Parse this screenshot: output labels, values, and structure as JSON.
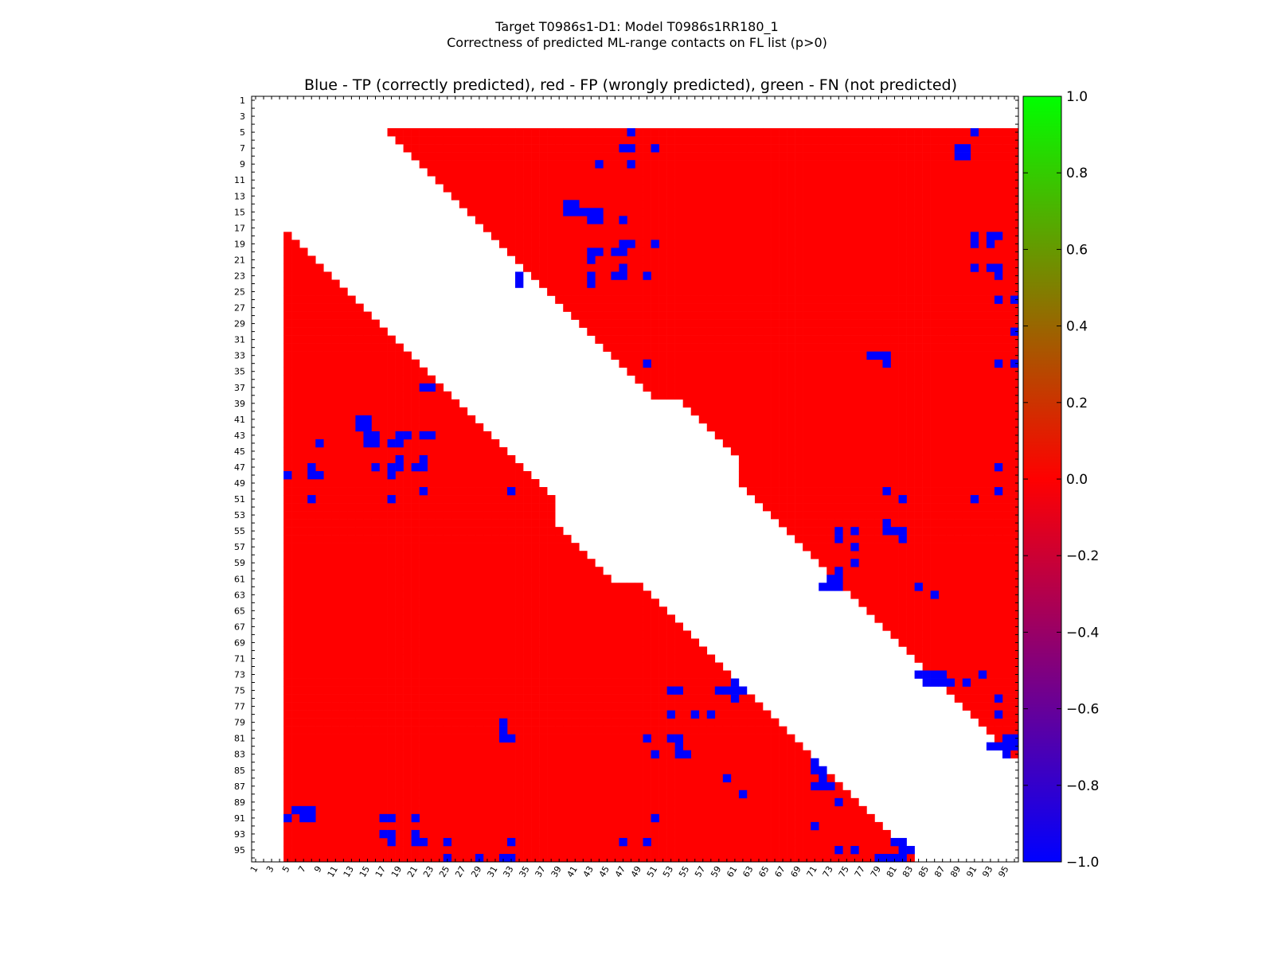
{
  "figure": {
    "title_line1": "Target T0986s1-D1: Model T0986s1RR180_1",
    "title_line2": "Correctness of predicted ML-range contacts on FL list (p>0)"
  },
  "chart_data": {
    "type": "heatmap",
    "title": "Blue - TP (correctly predicted), red - FP (wrongly predicted), green - FN (not predicted)",
    "n": 96,
    "x_ticks": [
      1,
      3,
      5,
      7,
      9,
      11,
      13,
      15,
      17,
      19,
      21,
      23,
      25,
      27,
      29,
      31,
      33,
      35,
      37,
      39,
      41,
      43,
      45,
      47,
      49,
      51,
      53,
      55,
      57,
      59,
      61,
      63,
      65,
      67,
      69,
      71,
      73,
      75,
      77,
      79,
      81,
      83,
      85,
      87,
      89,
      91,
      93,
      95
    ],
    "y_ticks": [
      1,
      3,
      5,
      7,
      9,
      11,
      13,
      15,
      17,
      19,
      21,
      23,
      25,
      27,
      29,
      31,
      33,
      35,
      37,
      39,
      41,
      43,
      45,
      47,
      49,
      51,
      53,
      55,
      57,
      59,
      61,
      63,
      65,
      67,
      69,
      71,
      73,
      75,
      77,
      79,
      81,
      83,
      85,
      87,
      89,
      91,
      93,
      95
    ],
    "colorbar": {
      "min": -1.0,
      "max": 1.0,
      "ticks": [
        "1.0",
        "0.8",
        "0.6",
        "0.4",
        "0.2",
        "0.0",
        "−0.2",
        "−0.4",
        "−0.6",
        "−0.8",
        "−1.0"
      ],
      "colors": [
        "#0000ff",
        "#ff0000",
        "#00ff00"
      ]
    },
    "colors": {
      "TP": "#0000ff",
      "FP": "#ff0000",
      "FN": "#00ff00"
    },
    "tp_cells": [
      [
        5,
        48
      ],
      [
        5,
        91
      ],
      [
        7,
        47
      ],
      [
        7,
        48
      ],
      [
        7,
        51
      ],
      [
        7,
        89
      ],
      [
        7,
        90
      ],
      [
        8,
        89
      ],
      [
        8,
        90
      ],
      [
        9,
        44
      ],
      [
        9,
        48
      ],
      [
        14,
        40
      ],
      [
        14,
        41
      ],
      [
        15,
        40
      ],
      [
        15,
        41
      ],
      [
        15,
        42
      ],
      [
        15,
        43
      ],
      [
        15,
        44
      ],
      [
        16,
        43
      ],
      [
        16,
        44
      ],
      [
        16,
        47
      ],
      [
        18,
        91
      ],
      [
        18,
        93
      ],
      [
        18,
        94
      ],
      [
        19,
        47
      ],
      [
        19,
        48
      ],
      [
        19,
        51
      ],
      [
        19,
        91
      ],
      [
        19,
        93
      ],
      [
        20,
        43
      ],
      [
        20,
        44
      ],
      [
        20,
        46
      ],
      [
        20,
        47
      ],
      [
        21,
        43
      ],
      [
        22,
        47
      ],
      [
        22,
        91
      ],
      [
        22,
        93
      ],
      [
        22,
        94
      ],
      [
        23,
        34
      ],
      [
        23,
        43
      ],
      [
        23,
        46
      ],
      [
        23,
        47
      ],
      [
        23,
        50
      ],
      [
        23,
        94
      ],
      [
        24,
        34
      ],
      [
        24,
        43
      ],
      [
        26,
        94
      ],
      [
        26,
        96
      ],
      [
        30,
        96
      ],
      [
        33,
        78
      ],
      [
        33,
        79
      ],
      [
        33,
        80
      ],
      [
        34,
        50
      ],
      [
        34,
        80
      ],
      [
        34,
        94
      ],
      [
        34,
        96
      ],
      [
        37,
        22
      ],
      [
        37,
        23
      ],
      [
        41,
        14
      ],
      [
        41,
        15
      ],
      [
        42,
        14
      ],
      [
        42,
        15
      ],
      [
        43,
        15
      ],
      [
        43,
        16
      ],
      [
        43,
        19
      ],
      [
        43,
        20
      ],
      [
        43,
        22
      ],
      [
        43,
        23
      ],
      [
        44,
        9
      ],
      [
        44,
        15
      ],
      [
        44,
        16
      ],
      [
        44,
        18
      ],
      [
        44,
        19
      ],
      [
        46,
        19
      ],
      [
        46,
        22
      ],
      [
        47,
        8
      ],
      [
        47,
        16
      ],
      [
        47,
        18
      ],
      [
        47,
        19
      ],
      [
        47,
        21
      ],
      [
        47,
        22
      ],
      [
        47,
        94
      ],
      [
        48,
        5
      ],
      [
        48,
        8
      ],
      [
        48,
        9
      ],
      [
        48,
        18
      ],
      [
        50,
        22
      ],
      [
        50,
        33
      ],
      [
        50,
        80
      ],
      [
        50,
        94
      ],
      [
        51,
        8
      ],
      [
        51,
        18
      ],
      [
        51,
        82
      ],
      [
        51,
        91
      ],
      [
        54,
        80
      ],
      [
        55,
        74
      ],
      [
        55,
        76
      ],
      [
        55,
        80
      ],
      [
        55,
        81
      ],
      [
        55,
        82
      ],
      [
        56,
        74
      ],
      [
        56,
        82
      ],
      [
        57,
        76
      ],
      [
        59,
        76
      ],
      [
        60,
        74
      ],
      [
        61,
        73
      ],
      [
        61,
        74
      ],
      [
        62,
        72
      ],
      [
        62,
        73
      ],
      [
        62,
        74
      ],
      [
        62,
        84
      ],
      [
        63,
        86
      ],
      [
        73,
        84
      ],
      [
        73,
        85
      ],
      [
        73,
        86
      ],
      [
        73,
        87
      ],
      [
        74,
        85
      ],
      [
        74,
        86
      ],
      [
        74,
        87
      ],
      [
        74,
        88
      ],
      [
        74,
        90
      ],
      [
        73,
        92
      ],
      [
        74,
        61
      ],
      [
        75,
        53
      ],
      [
        75,
        54
      ],
      [
        75,
        59
      ],
      [
        75,
        60
      ],
      [
        75,
        61
      ],
      [
        75,
        62
      ],
      [
        76,
        61
      ],
      [
        76,
        94
      ],
      [
        78,
        53
      ],
      [
        78,
        56
      ],
      [
        78,
        58
      ],
      [
        78,
        94
      ],
      [
        79,
        32
      ],
      [
        80,
        32
      ],
      [
        81,
        32
      ],
      [
        81,
        33
      ],
      [
        81,
        50
      ],
      [
        81,
        53
      ],
      [
        81,
        54
      ],
      [
        82,
        54
      ],
      [
        83,
        51
      ],
      [
        83,
        54
      ],
      [
        83,
        55
      ],
      [
        81,
        95
      ],
      [
        81,
        96
      ],
      [
        82,
        93
      ],
      [
        82,
        94
      ],
      [
        82,
        95
      ],
      [
        82,
        96
      ],
      [
        83,
        95
      ],
      [
        84,
        71
      ],
      [
        85,
        71
      ],
      [
        85,
        72
      ],
      [
        86,
        60
      ],
      [
        86,
        72
      ],
      [
        87,
        71
      ],
      [
        87,
        72
      ],
      [
        87,
        73
      ],
      [
        88,
        62
      ],
      [
        89,
        74
      ],
      [
        90,
        6
      ],
      [
        90,
        7
      ],
      [
        90,
        8
      ],
      [
        91,
        5
      ],
      [
        91,
        7
      ],
      [
        91,
        8
      ],
      [
        91,
        17
      ],
      [
        91,
        18
      ],
      [
        91,
        21
      ],
      [
        91,
        51
      ],
      [
        92,
        71
      ],
      [
        93,
        17
      ],
      [
        93,
        18
      ],
      [
        93,
        21
      ],
      [
        94,
        18
      ],
      [
        94,
        21
      ],
      [
        94,
        22
      ],
      [
        94,
        25
      ],
      [
        94,
        33
      ],
      [
        94,
        47
      ],
      [
        94,
        50
      ],
      [
        94,
        81
      ],
      [
        94,
        82
      ],
      [
        95,
        74
      ],
      [
        95,
        76
      ],
      [
        95,
        82
      ],
      [
        95,
        83
      ],
      [
        96,
        25
      ],
      [
        96,
        29
      ],
      [
        96,
        32
      ],
      [
        96,
        33
      ],
      [
        96,
        79
      ],
      [
        96,
        80
      ],
      [
        96,
        81
      ],
      [
        96,
        82
      ]
    ]
  }
}
